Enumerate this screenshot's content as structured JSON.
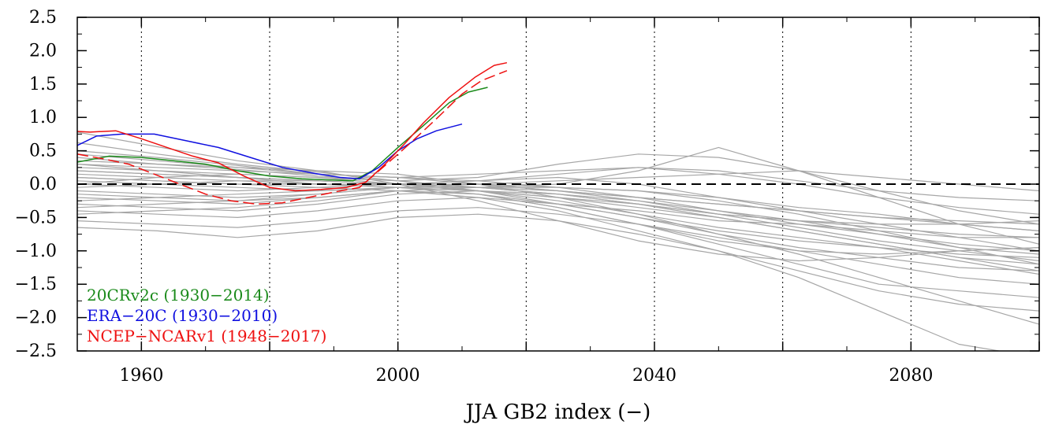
{
  "chart_data": {
    "type": "line",
    "title": "",
    "xlabel": "JJA GB2 index (−)",
    "ylabel": "",
    "xlim": [
      1950,
      2100
    ],
    "ylim": [
      -2.5,
      2.5
    ],
    "x_ticks": [
      1960,
      2000,
      2040,
      2080
    ],
    "x_tick_labels": [
      "1960",
      "2000",
      "2040",
      "2080"
    ],
    "y_ticks": [
      -2.5,
      -2.0,
      -1.5,
      -1.0,
      -0.5,
      0.0,
      0.5,
      1.0,
      1.5,
      2.0,
      2.5
    ],
    "y_tick_labels": [
      "−2.5",
      "−2.0",
      "−1.5",
      "−1.0",
      "−0.5",
      "0.0",
      "0.5",
      "1.0",
      "1.5",
      "2.0",
      "2.5"
    ],
    "vertical_gridlines_dotted": [
      1960,
      1980,
      2000,
      2020,
      2040,
      2060,
      2080
    ],
    "zero_line": {
      "y": 0.0,
      "style": "dashed",
      "color": "#000000"
    },
    "grid": false,
    "legend_placement": "bottom-left",
    "legend": [
      {
        "text": "20CRv2c (1930−2014)",
        "color": "#1a8a1a"
      },
      {
        "text": "ERA−20C (1930−2010)",
        "color": "#1010e0"
      },
      {
        "text": "NCEP−NCARv1 (1948−2017)",
        "color": "#ee1010"
      }
    ],
    "colors": {
      "ensemble": "#a6a6a6",
      "20CRv2c": "#1a8a1a",
      "ERA-20C": "#1010e0",
      "NCEP-NCARv1": "#ee1010"
    },
    "series": [
      {
        "name": "20CRv2c",
        "style": "solid",
        "color": "#1a8a1a",
        "x": [
          1950,
          1955,
          1960,
          1965,
          1970,
          1975,
          1980,
          1985,
          1990,
          1993,
          1996,
          2000,
          2004,
          2008,
          2011,
          2014
        ],
        "y": [
          0.33,
          0.42,
          0.4,
          0.35,
          0.3,
          0.2,
          0.12,
          0.08,
          0.06,
          0.05,
          0.2,
          0.55,
          0.88,
          1.22,
          1.38,
          1.45
        ]
      },
      {
        "name": "ERA-20C",
        "style": "solid",
        "color": "#1010e0",
        "x": [
          1950,
          1953,
          1957,
          1962,
          1967,
          1972,
          1977,
          1982,
          1987,
          1991,
          1994,
          1997,
          2000,
          2003,
          2006,
          2010
        ],
        "y": [
          0.58,
          0.72,
          0.75,
          0.75,
          0.65,
          0.55,
          0.4,
          0.25,
          0.16,
          0.1,
          0.08,
          0.25,
          0.5,
          0.68,
          0.8,
          0.9
        ]
      },
      {
        "name": "NCEP-NCARv1",
        "style": "solid",
        "color": "#ee1010",
        "x": [
          1948,
          1952,
          1956,
          1960,
          1964,
          1968,
          1972,
          1976,
          1980,
          1984,
          1988,
          1992,
          1995,
          1998,
          2001,
          2004,
          2008,
          2012,
          2015,
          2017
        ],
        "y": [
          0.8,
          0.78,
          0.8,
          0.68,
          0.55,
          0.42,
          0.32,
          0.12,
          -0.05,
          -0.1,
          -0.08,
          -0.05,
          0.03,
          0.3,
          0.6,
          0.92,
          1.3,
          1.6,
          1.78,
          1.82
        ]
      },
      {
        "name": "NCEP-NCARv1 (dashed)",
        "style": "dashed",
        "color": "#ee1010",
        "x": [
          1950,
          1954,
          1958,
          1962,
          1966,
          1970,
          1974,
          1978,
          1982,
          1986,
          1990,
          1994,
          1998,
          2002,
          2006,
          2010,
          2013,
          2017
        ],
        "y": [
          0.45,
          0.38,
          0.3,
          0.15,
          0.0,
          -0.15,
          -0.25,
          -0.3,
          -0.28,
          -0.2,
          -0.12,
          -0.05,
          0.28,
          0.62,
          0.98,
          1.35,
          1.55,
          1.7
        ]
      }
    ],
    "ensemble_members": [
      [
        0.78,
        0.56,
        0.35,
        0.2,
        0.0,
        -0.25,
        -0.55,
        -0.85,
        -1.05,
        -1.15,
        -1.1,
        -1.0,
        -0.95
      ],
      [
        0.62,
        0.45,
        0.3,
        0.18,
        0.05,
        -0.1,
        -0.3,
        -0.5,
        -0.7,
        -0.85,
        -0.95,
        -1.05,
        -1.1
      ],
      [
        0.5,
        0.4,
        0.28,
        0.15,
        0.1,
        0.05,
        -0.05,
        -0.2,
        -0.4,
        -0.6,
        -0.75,
        -0.9,
        -1.0
      ],
      [
        0.4,
        0.3,
        0.22,
        0.12,
        0.05,
        -0.05,
        -0.15,
        -0.3,
        -0.45,
        -0.55,
        -0.65,
        -0.75,
        -0.8
      ],
      [
        0.3,
        0.25,
        0.2,
        0.15,
        0.1,
        0.0,
        -0.1,
        -0.2,
        -0.3,
        -0.4,
        -0.5,
        -0.55,
        -0.6
      ],
      [
        0.2,
        0.15,
        0.1,
        0.05,
        0.0,
        -0.1,
        -0.2,
        -0.35,
        -0.5,
        -0.7,
        -0.9,
        -1.1,
        -1.3
      ],
      [
        0.1,
        0.05,
        0.0,
        0.0,
        0.0,
        0.05,
        0.1,
        0.0,
        -0.2,
        -0.4,
        -0.6,
        -0.8,
        -1.0
      ],
      [
        0.0,
        -0.05,
        -0.1,
        -0.05,
        0.0,
        0.0,
        -0.05,
        -0.1,
        -0.25,
        -0.45,
        -0.7,
        -0.95,
        -1.2
      ],
      [
        -0.1,
        -0.15,
        -0.2,
        -0.15,
        -0.05,
        0.0,
        0.05,
        0.1,
        0.15,
        0.2,
        0.1,
        0.0,
        -0.1
      ],
      [
        -0.2,
        -0.25,
        -0.3,
        -0.2,
        -0.1,
        -0.05,
        -0.1,
        -0.2,
        -0.3,
        -0.4,
        -0.5,
        -0.6,
        -0.7
      ],
      [
        -0.3,
        -0.35,
        -0.4,
        -0.3,
        -0.15,
        -0.1,
        -0.2,
        -0.3,
        -0.5,
        -0.7,
        -0.9,
        -1.1,
        -1.2
      ],
      [
        -0.4,
        -0.45,
        -0.5,
        -0.4,
        -0.25,
        -0.2,
        -0.3,
        -0.4,
        -0.55,
        -0.6,
        -0.7,
        -0.8,
        -0.8
      ],
      [
        -0.55,
        -0.6,
        -0.65,
        -0.55,
        -0.4,
        -0.35,
        -0.45,
        -0.6,
        -0.8,
        -1.0,
        -1.2,
        -1.4,
        -1.5
      ],
      [
        -0.65,
        -0.7,
        -0.8,
        -0.7,
        -0.5,
        -0.45,
        -0.55,
        -0.75,
        -1.0,
        -1.3,
        -1.6,
        -1.8,
        -1.9
      ],
      [
        0.25,
        0.2,
        0.15,
        0.1,
        0.05,
        0.1,
        0.3,
        0.45,
        0.4,
        0.2,
        -0.1,
        -0.4,
        -0.6
      ],
      [
        0.35,
        0.3,
        0.25,
        0.2,
        0.15,
        0.0,
        -0.2,
        -0.45,
        -0.75,
        -1.05,
        -1.4,
        -1.75,
        -2.1
      ],
      [
        -0.05,
        0.0,
        0.05,
        0.05,
        0.0,
        -0.05,
        0.0,
        0.2,
        0.55,
        0.2,
        -0.2,
        -0.6,
        -0.9
      ],
      [
        0.15,
        0.1,
        0.05,
        0.0,
        -0.05,
        -0.15,
        -0.35,
        -0.6,
        -0.85,
        -1.0,
        -1.05,
        -1.0,
        -0.95
      ],
      [
        0.05,
        0.0,
        -0.05,
        -0.1,
        -0.05,
        0.0,
        -0.1,
        -0.25,
        -0.45,
        -0.65,
        -0.85,
        -1.0,
        -1.15
      ],
      [
        -0.25,
        -0.2,
        -0.15,
        -0.1,
        -0.05,
        -0.1,
        -0.25,
        -0.45,
        -0.65,
        -0.8,
        -0.95,
        -1.15,
        -1.35
      ],
      [
        0.45,
        0.35,
        0.25,
        0.15,
        0.1,
        0.15,
        0.2,
        0.25,
        0.15,
        0.0,
        -0.2,
        -0.35,
        -0.45
      ],
      [
        -0.15,
        -0.2,
        -0.25,
        -0.2,
        -0.1,
        -0.15,
        -0.35,
        -0.6,
        -0.9,
        -1.2,
        -1.5,
        -1.6,
        -1.7
      ],
      [
        0.1,
        0.05,
        0.0,
        -0.05,
        -0.1,
        -0.2,
        -0.4,
        -0.7,
        -1.0,
        -1.4,
        -1.9,
        -2.4,
        -2.6
      ],
      [
        -0.35,
        -0.3,
        -0.25,
        -0.15,
        -0.05,
        -0.05,
        -0.15,
        -0.3,
        -0.45,
        -0.55,
        -0.6,
        -0.6,
        -0.55
      ],
      [
        0.0,
        0.1,
        0.15,
        0.1,
        0.0,
        -0.05,
        -0.05,
        -0.1,
        -0.2,
        -0.35,
        -0.45,
        -0.6,
        -0.7
      ],
      [
        0.2,
        0.15,
        0.1,
        0.05,
        0.0,
        0.05,
        0.15,
        0.25,
        0.2,
        0.05,
        -0.1,
        -0.2,
        -0.25
      ],
      [
        -0.45,
        -0.4,
        -0.35,
        -0.25,
        -0.1,
        -0.15,
        -0.3,
        -0.5,
        -0.75,
        -0.95,
        -1.1,
        -1.25,
        -1.3
      ],
      [
        0.3,
        0.2,
        0.1,
        0.0,
        -0.05,
        -0.1,
        -0.15,
        -0.25,
        -0.4,
        -0.55,
        -0.75,
        -0.95,
        -1.05
      ]
    ]
  }
}
